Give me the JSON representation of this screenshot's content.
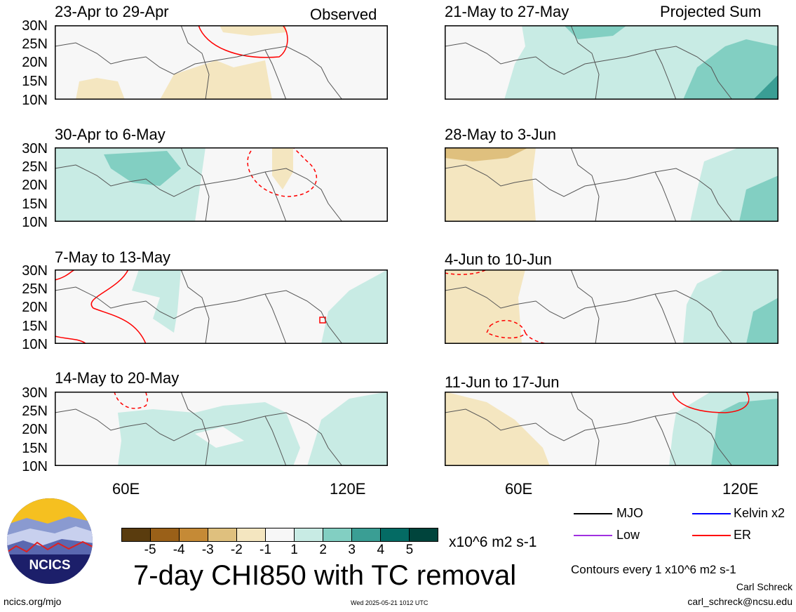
{
  "panels": [
    {
      "id": "p1",
      "title": "23-Apr to 29-Apr",
      "tag": "Observed"
    },
    {
      "id": "p2",
      "title": "30-Apr to 6-May",
      "tag": ""
    },
    {
      "id": "p3",
      "title": "7-May to 13-May",
      "tag": ""
    },
    {
      "id": "p4",
      "title": "14-May to 20-May",
      "tag": ""
    },
    {
      "id": "p5",
      "title": "21-May to 27-May",
      "tag": "Projected Sum"
    },
    {
      "id": "p6",
      "title": "28-May to 3-Jun",
      "tag": ""
    },
    {
      "id": "p7",
      "title": "4-Jun to 10-Jun",
      "tag": ""
    },
    {
      "id": "p8",
      "title": "11-Jun to 17-Jun",
      "tag": ""
    }
  ],
  "y_ticks": [
    "30N",
    "25N",
    "20N",
    "15N",
    "10N"
  ],
  "x_ticks": [
    "60E",
    "120E"
  ],
  "colorbar": {
    "colors": [
      "#5a3c0e",
      "#9a6018",
      "#c58a36",
      "#dfc07e",
      "#f4e6c0",
      "#f7f7f7",
      "#c8ebe4",
      "#82cfc2",
      "#3a9e94",
      "#046b64",
      "#00443c"
    ],
    "labels": [
      "-5",
      "-4",
      "-3",
      "-2",
      "-1",
      "1",
      "2",
      "3",
      "4",
      "5"
    ],
    "units": "x10^6 m2 s-1"
  },
  "legend": {
    "items": [
      {
        "label": "MJO",
        "color": "#000000"
      },
      {
        "label": "Kelvin x2",
        "color": "#0000ff"
      },
      {
        "label": "Low",
        "color": "#a030e0"
      },
      {
        "label": "ER",
        "color": "#ff0000"
      }
    ]
  },
  "main_title": "7-day CHI850 with TC removal",
  "contour_note": "Contours every 1 x10^6 m2 s-1",
  "author": "Carl Schreck",
  "email": "carl_schreck@ncsu.edu",
  "site": "ncics.org/mjo",
  "timestamp": "Wed 2025-05-21 1012 UTC",
  "logo_text": "NCICS"
}
